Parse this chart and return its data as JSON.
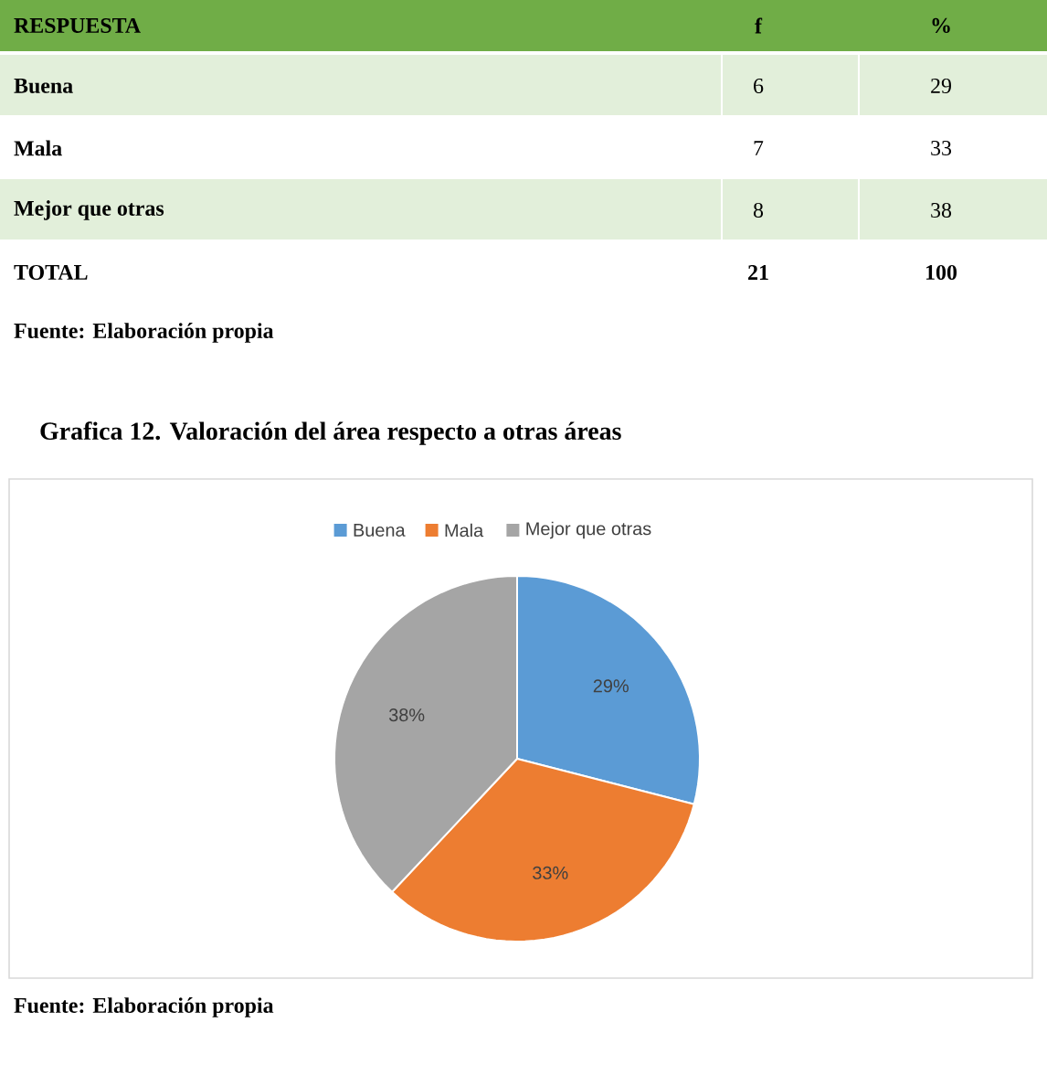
{
  "chart_data": [
    {
      "type": "other",
      "xlabel": "RESPUESTA",
      "categories": [
        "Buena",
        "Mala",
        "Mejor que otras",
        "TOTAL"
      ],
      "series": [
        {
          "name": "f",
          "values": [
            6,
            7,
            8,
            21
          ]
        },
        {
          "name": "%",
          "values": [
            29,
            33,
            38,
            100
          ]
        }
      ],
      "data_labels": true,
      "annotations": [
        "Fuente: Elaboración propia"
      ]
    },
    {
      "type": "pie",
      "title": "Grafica 12. Valoración del área respecto a otras áreas",
      "categories": [
        "Buena",
        "Mala",
        "Mejor que otras"
      ],
      "values": [
        29,
        33,
        38
      ],
      "colors": [
        "#5b9bd5",
        "#ed7d31",
        "#a5a5a5"
      ],
      "value_labels": [
        "29%",
        "33%",
        "38%"
      ],
      "legend": "top",
      "annotations": [
        "Fuente: Elaboración propia"
      ]
    }
  ]
}
